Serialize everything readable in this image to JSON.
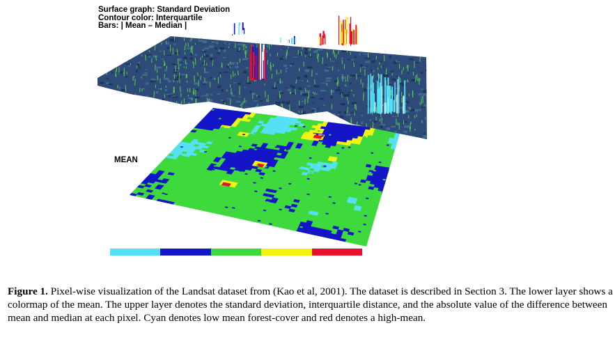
{
  "figure": {
    "legend_lines": [
      "Surface graph: Standard Deviation",
      "Contour color: Interquartile",
      "Bars: | Mean – Median |"
    ],
    "layer_label": "MEAN",
    "colorbar": [
      "#55e0f5",
      "#1414c8",
      "#3dd93d",
      "#f2f214",
      "#e8102a"
    ],
    "colors": {
      "surface": "#2e4a78",
      "surface_highlight": "#3f6e8c",
      "bar_green": "#58d04a",
      "map_green": "#3dd93d",
      "map_blue": "#1414c8",
      "map_cyan": "#55e0f5",
      "map_yellow": "#f2f214",
      "map_red": "#e8102a"
    }
  },
  "caption": {
    "label": "Figure 1.",
    "text": " Pixel-wise visualization of the Landsat dataset from (Kao et al, 2001). The dataset is described in Section 3. The lower layer shows a colormap of the mean. The upper layer denotes the standard deviation, interquartile distance, and the absolute value of the difference between mean and median at each pixel. Cyan denotes low mean forest-cover and red denotes a high-mean."
  }
}
